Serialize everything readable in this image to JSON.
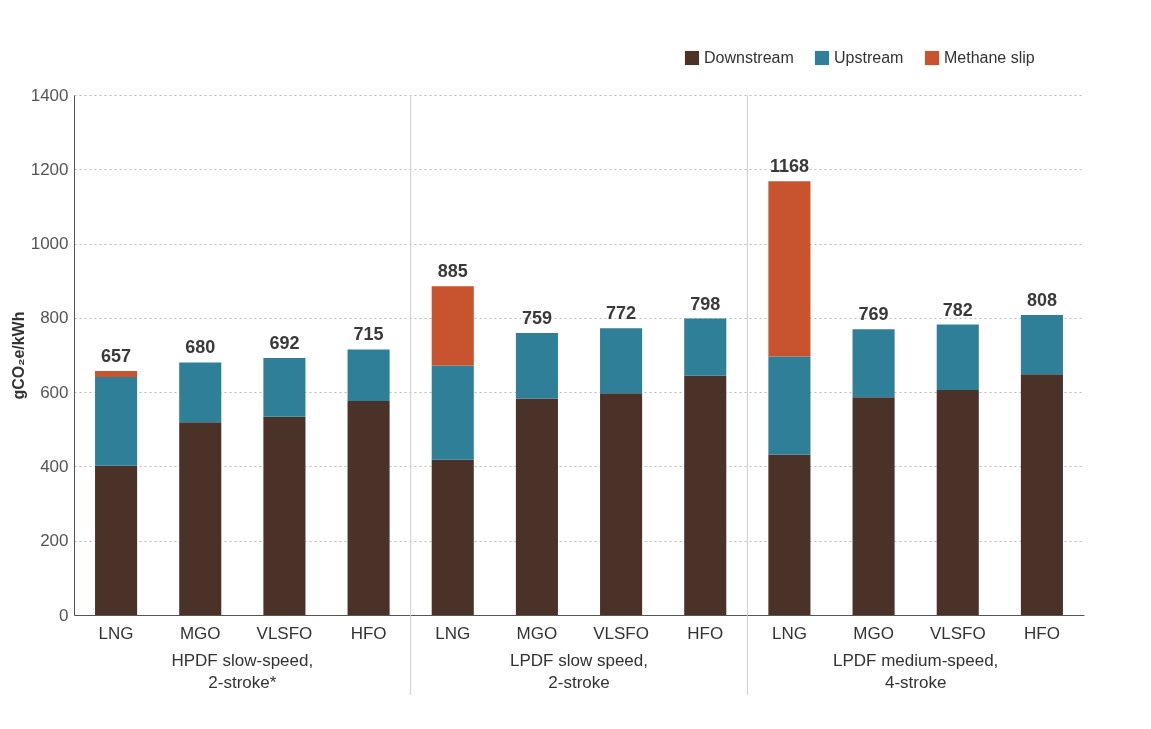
{
  "chart_data": {
    "type": "bar",
    "stacked": true,
    "ylabel": "gCO₂e/kWh",
    "categories": [
      "LNG",
      "MGO",
      "VLSFO",
      "HFO",
      "LNG",
      "MGO",
      "VLSFO",
      "HFO",
      "LNG",
      "MGO",
      "VLSFO",
      "HFO"
    ],
    "series": [
      {
        "name": "Downstream",
        "color": "#4a3229",
        "values": [
          402,
          519,
          534,
          576,
          418,
          583,
          597,
          644,
          432,
          586,
          606,
          648
        ]
      },
      {
        "name": "Upstream",
        "color": "#2f7f98",
        "values": [
          239,
          161,
          158,
          139,
          254,
          176,
          175,
          154,
          264,
          183,
          176,
          160
        ]
      },
      {
        "name": "Methane slip",
        "color": "#c8532f",
        "values": [
          16,
          null,
          null,
          null,
          213,
          null,
          null,
          null,
          472,
          null,
          null,
          null
        ]
      }
    ],
    "totals": [
      "657",
      "680",
      "692",
      "715",
      "885",
      "759",
      "772",
      "798",
      "1168",
      "769",
      "782",
      "808"
    ],
    "ylim": [
      0,
      1400
    ],
    "yticks": [
      0,
      200,
      400,
      600,
      800,
      1000,
      1200,
      1400
    ],
    "grid": "y",
    "legend": "top right",
    "annotations": [
      "HPDF slow-speed,\n2-stroke*",
      "LPDF slow speed,\n2-stroke",
      "LPDF medium-speed,\n4-stroke"
    ]
  }
}
